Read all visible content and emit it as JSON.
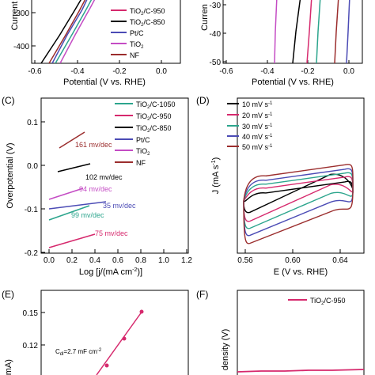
{
  "colors": {
    "tio2_c_1050": "#2ca58d",
    "tio2_c_950": "#d6296d",
    "tio2_c_850": "#000000",
    "pt_c": "#4b4bb5",
    "tio2": "#c44cc4",
    "nf": "#9b2d2d"
  },
  "panel_labels": {
    "c": "(C)",
    "d": "(D)",
    "e": "(E)",
    "f": "(F)"
  },
  "chart_data": [
    {
      "id": "A",
      "type": "line",
      "xlabel": "Potential (V vs. RHE)",
      "ylabel": "Current",
      "x_ticks": [
        "-0.6",
        "-0.4",
        "-0.2",
        "0.0"
      ],
      "y_ticks": [
        "-300",
        "-400"
      ],
      "xlim": [
        -0.6,
        0.05
      ],
      "legend": [
        "TiO2/C-950",
        "TiO2/C-850",
        "Pt/C",
        "TiO2",
        "NF"
      ],
      "legend_text": {
        "tio2_c_950": "TiO",
        "tio2_c_950_tail": "/C-950",
        "tio2_c_850": "TiO",
        "tio2_c_850_tail": "/C-850",
        "pt_c": "Pt/C",
        "tio2": "TiO",
        "nf": "NF",
        "sub2": "2"
      },
      "series": [
        {
          "key": "tio2_c_1050",
          "x": [
            -0.5,
            -0.42,
            -0.35,
            -0.31
          ],
          "y": [
            -430,
            -360,
            -290,
            -250
          ]
        },
        {
          "key": "tio2_c_850",
          "x": [
            -0.57,
            -0.48,
            -0.4,
            -0.35
          ],
          "y": [
            -450,
            -380,
            -310,
            -250
          ]
        },
        {
          "key": "pt_c",
          "x": [
            -0.52,
            -0.44,
            -0.36,
            -0.33
          ],
          "y": [
            -460,
            -380,
            -300,
            -250
          ]
        },
        {
          "key": "tio2",
          "x": [
            -0.47,
            -0.4,
            -0.33,
            -0.31
          ],
          "y": [
            -470,
            -390,
            -300,
            -250
          ]
        },
        {
          "key": "nf",
          "x": [
            -0.49,
            -0.41,
            -0.33,
            -0.27
          ],
          "y": [
            -460,
            -380,
            -300,
            -250
          ]
        }
      ]
    },
    {
      "id": "B",
      "type": "line",
      "xlabel": "Potential (V vs. RHE)",
      "ylabel": "Curren",
      "x_ticks": [
        "-0.6",
        "-0.4",
        "-0.2",
        "0.0"
      ],
      "y_ticks": [
        "-30",
        "-40",
        "-50"
      ],
      "xlim": [
        -0.6,
        0.05
      ],
      "ylim": [
        -50,
        -24
      ],
      "series": [
        {
          "key": "tio2",
          "x": [
            -0.36,
            -0.35
          ],
          "y": [
            -50,
            -28
          ]
        },
        {
          "key": "tio2_c_850",
          "x": [
            -0.27,
            -0.25,
            -0.23
          ],
          "y": [
            -50,
            -38,
            -25
          ]
        },
        {
          "key": "tio2_c_950",
          "x": [
            -0.2,
            -0.19,
            -0.18
          ],
          "y": [
            -50,
            -38,
            -25
          ]
        },
        {
          "key": "tio2_c_1050",
          "x": [
            -0.155,
            -0.145,
            -0.135
          ],
          "y": [
            -50,
            -38,
            -25
          ]
        },
        {
          "key": "nf",
          "x": [
            -0.07,
            -0.06,
            -0.05
          ],
          "y": [
            -50,
            -38,
            -25
          ]
        },
        {
          "key": "pt_c",
          "x": [
            -0.01,
            0.0,
            0.005
          ],
          "y": [
            -50,
            -38,
            -25
          ]
        }
      ]
    },
    {
      "id": "C",
      "type": "line",
      "xlabel": "Log [j/(mA cm",
      "xlabel_sup": "-2",
      "xlabel_tail": ")]",
      "ylabel": "Overpotential (V)",
      "x_ticks": [
        "0.0",
        "0.2",
        "0.4",
        "0.6",
        "0.8",
        "1.0",
        "1.2"
      ],
      "y_ticks": [
        "0.1",
        "0.0",
        "-0.1",
        "-0.2"
      ],
      "xlim": [
        -0.05,
        1.2
      ],
      "ylim": [
        -0.2,
        0.125
      ],
      "legend_text": {
        "tio2_c_1050": "TiO",
        "tio2_c_1050_tail": "/C-1050",
        "tio2_c_950": "TiO",
        "tio2_c_950_tail": "/C-950",
        "tio2_c_850": "TiO",
        "tio2_c_850_tail": "/C-850",
        "pt_c": "Pt/C",
        "tio2": "TiO",
        "nf": "NF",
        "sub2": "2"
      },
      "series": [
        {
          "key": "nf",
          "x": [
            0.12,
            0.33
          ],
          "y": [
            0.04,
            0.077
          ],
          "label": "161 mv/dec"
        },
        {
          "key": "tio2_c_850",
          "x": [
            0.08,
            0.36
          ],
          "y": [
            -0.015,
            0.003
          ],
          "label": "102 mv/dec"
        },
        {
          "key": "tio2",
          "x": [
            0.0,
            0.3
          ],
          "y": [
            -0.078,
            -0.052
          ],
          "label": "94 mv/dec"
        },
        {
          "key": "pt_c",
          "x": [
            0.0,
            0.5
          ],
          "y": [
            -0.1,
            -0.084
          ],
          "label": "35 mv/dec"
        },
        {
          "key": "tio2_c_1050",
          "x": [
            0.0,
            0.35
          ],
          "y": [
            -0.125,
            -0.093
          ],
          "label": "99 mv/dec"
        },
        {
          "key": "tio2_c_950",
          "x": [
            0.0,
            0.4
          ],
          "y": [
            -0.19,
            -0.158
          ],
          "label": "75 mv/dec"
        }
      ]
    },
    {
      "id": "D",
      "type": "line",
      "xlabel": "E (V vs. RHE)",
      "ylabel": "J (mA s",
      "ylabel_sup": "-1",
      "ylabel_tail": ")",
      "x_ticks": [
        "0.56",
        "0.60",
        "0.64"
      ],
      "xlim": [
        0.545,
        0.665
      ],
      "legend": [
        "10 mV s-1",
        "20 mV s-1",
        "30 mV s-1",
        "40 mV s-1",
        "50 mV s-1"
      ],
      "legend_text": {
        "r10": "10 mV s",
        "r20": "20 mV s",
        "r30": "30 mV s",
        "r40": "40 mV s",
        "r50": "50 mV s",
        "sup": "-1"
      },
      "cv_keys": [
        "tio2_c_850",
        "tio2_c_950",
        "tio2_c_1050",
        "pt_c",
        "nf"
      ],
      "cv_amplitudes": [
        0.22,
        0.42,
        0.58,
        0.74,
        0.92
      ]
    },
    {
      "id": "E",
      "type": "scatter",
      "ylabel": "(mA)",
      "y_ticks": [
        "0.15",
        "0.12"
      ],
      "ylim": [
        0.09,
        0.17
      ],
      "annotation": "C",
      "annotation_sub": "dl",
      "annotation_tail": "=2.7 mF cm",
      "annotation_sup": "-2",
      "x": [
        30,
        40,
        50
      ],
      "y": [
        0.1,
        0.125,
        0.15
      ]
    },
    {
      "id": "F",
      "type": "line",
      "ylabel": "density (V)",
      "legend_text": {
        "tio2_c_950": "TiO",
        "tio2_c_950_tail": "/C-950",
        "sub2": "2"
      }
    }
  ]
}
